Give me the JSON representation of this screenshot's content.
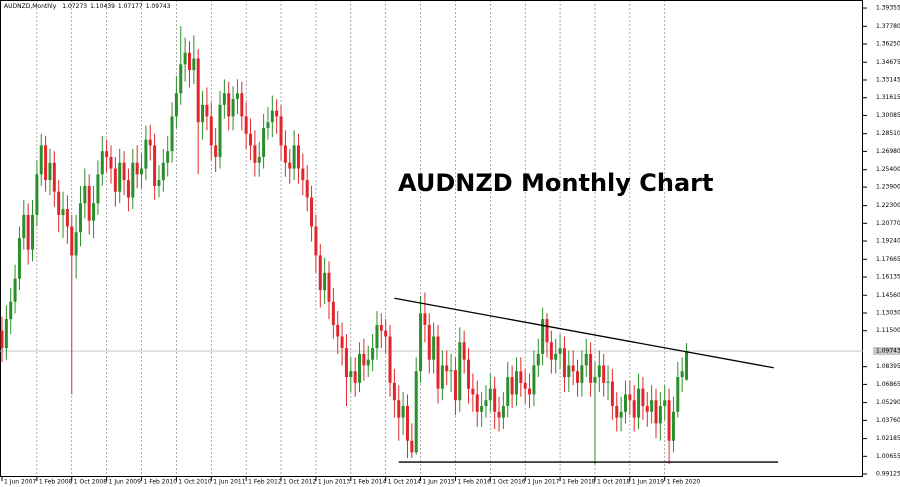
{
  "chart_data": {
    "type": "candlestick",
    "symbol": "AUDNZD,Monthly",
    "title": "AUDNZD Monthly Chart",
    "up_color": "#2a8f2a",
    "down_color": "#e0262c",
    "title_color": "#1f3f7a",
    "grid": true,
    "last_price": 1.09743,
    "ylim": [
      0.9887,
      1.4005
    ],
    "yticks": [
      1.39355,
      {
        "value": 1.3778,
        "label": "1.37780"
      },
      {
        "value": 1.3625,
        "label": "1.36250"
      },
      1.34675,
      1.33145,
      1.31615,
      1.30085,
      {
        "value": 1.2851,
        "label": "1.28510"
      },
      {
        "value": 1.2698,
        "label": "1.26980"
      },
      {
        "value": 1.254,
        "label": "1.25400"
      },
      {
        "value": 1.239,
        "label": "1.23900"
      },
      {
        "value": 1.223,
        "label": "1.22300"
      },
      {
        "value": 1.2077,
        "label": "1.20770"
      },
      {
        "value": 1.1924,
        "label": "1.19240"
      },
      1.17665,
      1.16135,
      {
        "value": 1.1456,
        "label": "1.14560"
      },
      {
        "value": 1.1303,
        "label": "1.13030"
      },
      {
        "value": 1.115,
        "label": "1.11500"
      },
      1.08395,
      1.06865,
      {
        "value": 1.0529,
        "label": "1.05290"
      },
      {
        "value": 1.0376,
        "label": "1.03760"
      },
      1.02185,
      1.00655,
      0.99125
    ],
    "categories": [
      "1 Jun 2007",
      null,
      null,
      null,
      null,
      null,
      null,
      null,
      "1 Feb 2008",
      null,
      null,
      null,
      null,
      null,
      null,
      null,
      "1 Oct 2008",
      null,
      null,
      null,
      null,
      null,
      null,
      null,
      "1 Jun 2009",
      null,
      null,
      null,
      null,
      null,
      null,
      null,
      "1 Feb 2010",
      null,
      null,
      null,
      null,
      null,
      null,
      null,
      "1 Oct 2010",
      null,
      null,
      null,
      null,
      null,
      null,
      null,
      "1 Jun 2011",
      null,
      null,
      null,
      null,
      null,
      null,
      null,
      "1 Feb 2012",
      null,
      null,
      null,
      null,
      null,
      null,
      null,
      "1 Oct 2012",
      null,
      null,
      null,
      null,
      null,
      null,
      null,
      "1 Jun 2013",
      null,
      null,
      null,
      null,
      null,
      null,
      null,
      "1 Feb 2014",
      null,
      null,
      null,
      null,
      null,
      null,
      null,
      "1 Oct 2014",
      null,
      null,
      null,
      null,
      null,
      null,
      null,
      "1 Jun 2015",
      null,
      null,
      null,
      null,
      null,
      null,
      null,
      "1 Feb 2016",
      null,
      null,
      null,
      null,
      null,
      null,
      null,
      "1 Oct 2016",
      null,
      null,
      null,
      null,
      null,
      null,
      null,
      "1 Jun 2017",
      null,
      null,
      null,
      null,
      null,
      null,
      null,
      "1 Feb 2018",
      null,
      null,
      null,
      null,
      null,
      null,
      null,
      "1 Oct 2018",
      null,
      null,
      null,
      null,
      null,
      null,
      null,
      "1 Jun 2019",
      null,
      null,
      null,
      null,
      null,
      null,
      null,
      "1 Feb 2020",
      null,
      null,
      null,
      null,
      null
    ],
    "ohlc": [
      [
        1.115,
        1.127,
        1.088,
        1.1
      ],
      [
        1.1,
        1.137,
        1.09,
        1.125
      ],
      [
        1.125,
        1.152,
        1.112,
        1.14
      ],
      [
        1.14,
        1.172,
        1.13,
        1.16
      ],
      [
        1.16,
        1.205,
        1.15,
        1.195
      ],
      [
        1.195,
        1.228,
        1.185,
        1.215
      ],
      [
        1.215,
        1.225,
        1.172,
        1.185
      ],
      [
        1.185,
        1.228,
        1.175,
        1.215
      ],
      [
        1.215,
        1.262,
        1.205,
        1.25
      ],
      [
        1.25,
        1.285,
        1.24,
        1.275
      ],
      [
        1.275,
        1.283,
        1.235,
        1.245
      ],
      [
        1.245,
        1.272,
        1.232,
        1.26
      ],
      [
        1.26,
        1.27,
        1.222,
        1.235
      ],
      [
        1.235,
        1.245,
        1.2,
        1.215
      ],
      [
        1.215,
        1.235,
        1.195,
        1.22
      ],
      [
        1.22,
        1.232,
        1.19,
        1.205
      ],
      [
        1.205,
        1.215,
        1.06,
        1.18
      ],
      [
        1.18,
        1.215,
        1.16,
        1.2
      ],
      [
        1.2,
        1.24,
        1.188,
        1.225
      ],
      [
        1.225,
        1.255,
        1.212,
        1.24
      ],
      [
        1.24,
        1.25,
        1.198,
        1.21
      ],
      [
        1.21,
        1.24,
        1.195,
        1.225
      ],
      [
        1.225,
        1.262,
        1.215,
        1.25
      ],
      [
        1.25,
        1.283,
        1.24,
        1.27
      ],
      [
        1.27,
        1.28,
        1.252,
        1.265
      ],
      [
        1.265,
        1.275,
        1.242,
        1.255
      ],
      [
        1.255,
        1.265,
        1.222,
        1.235
      ],
      [
        1.235,
        1.272,
        1.225,
        1.26
      ],
      [
        1.26,
        1.27,
        1.232,
        1.245
      ],
      [
        1.245,
        1.255,
        1.218,
        1.23
      ],
      [
        1.23,
        1.272,
        1.22,
        1.26
      ],
      [
        1.26,
        1.275,
        1.238,
        1.25
      ],
      [
        1.25,
        1.268,
        1.238,
        1.255
      ],
      [
        1.255,
        1.292,
        1.245,
        1.28
      ],
      [
        1.28,
        1.293,
        1.262,
        1.275
      ],
      [
        1.275,
        1.285,
        1.228,
        1.24
      ],
      [
        1.24,
        1.258,
        1.23,
        1.245
      ],
      [
        1.245,
        1.272,
        1.235,
        1.26
      ],
      [
        1.26,
        1.283,
        1.248,
        1.27
      ],
      [
        1.27,
        1.312,
        1.26,
        1.3
      ],
      [
        1.3,
        1.335,
        1.29,
        1.32
      ],
      [
        1.32,
        1.378,
        1.31,
        1.345
      ],
      [
        1.345,
        1.368,
        1.33,
        1.355
      ],
      [
        1.355,
        1.365,
        1.325,
        1.34
      ],
      [
        1.34,
        1.37,
        1.328,
        1.35
      ],
      [
        1.35,
        1.358,
        1.25,
        1.295
      ],
      [
        1.295,
        1.322,
        1.28,
        1.31
      ],
      [
        1.31,
        1.325,
        1.288,
        1.3
      ],
      [
        1.3,
        1.312,
        1.262,
        1.275
      ],
      [
        1.275,
        1.29,
        1.252,
        1.265
      ],
      [
        1.265,
        1.322,
        1.255,
        1.31
      ],
      [
        1.31,
        1.332,
        1.298,
        1.32
      ],
      [
        1.32,
        1.33,
        1.288,
        1.3
      ],
      [
        1.3,
        1.326,
        1.288,
        1.315
      ],
      [
        1.315,
        1.332,
        1.302,
        1.32
      ],
      [
        1.32,
        1.33,
        1.288,
        1.3
      ],
      [
        1.3,
        1.312,
        1.272,
        1.285
      ],
      [
        1.285,
        1.298,
        1.262,
        1.275
      ],
      [
        1.275,
        1.288,
        1.248,
        1.26
      ],
      [
        1.26,
        1.278,
        1.248,
        1.265
      ],
      [
        1.265,
        1.302,
        1.255,
        1.29
      ],
      [
        1.29,
        1.308,
        1.28,
        1.295
      ],
      [
        1.295,
        1.318,
        1.282,
        1.305
      ],
      [
        1.305,
        1.315,
        1.285,
        1.3
      ],
      [
        1.3,
        1.31,
        1.262,
        1.275
      ],
      [
        1.275,
        1.288,
        1.248,
        1.26
      ],
      [
        1.26,
        1.272,
        1.242,
        1.255
      ],
      [
        1.255,
        1.288,
        1.245,
        1.275
      ],
      [
        1.275,
        1.285,
        1.242,
        1.255
      ],
      [
        1.255,
        1.268,
        1.232,
        1.245
      ],
      [
        1.245,
        1.258,
        1.218,
        1.23
      ],
      [
        1.23,
        1.24,
        1.192,
        1.205
      ],
      [
        1.205,
        1.215,
        1.165,
        1.18
      ],
      [
        1.18,
        1.19,
        1.135,
        1.15
      ],
      [
        1.15,
        1.178,
        1.138,
        1.165
      ],
      [
        1.165,
        1.175,
        1.125,
        1.14
      ],
      [
        1.14,
        1.152,
        1.108,
        1.12
      ],
      [
        1.12,
        1.132,
        1.095,
        1.11
      ],
      [
        1.11,
        1.122,
        1.085,
        1.1
      ],
      [
        1.1,
        1.112,
        1.05,
        1.075
      ],
      [
        1.075,
        1.092,
        1.062,
        1.08
      ],
      [
        1.08,
        1.092,
        1.058,
        1.07
      ],
      [
        1.07,
        1.105,
        1.062,
        1.095
      ],
      [
        1.095,
        1.108,
        1.072,
        1.085
      ],
      [
        1.085,
        1.102,
        1.075,
        1.09
      ],
      [
        1.09,
        1.112,
        1.08,
        1.1
      ],
      [
        1.1,
        1.132,
        1.09,
        1.12
      ],
      [
        1.12,
        1.13,
        1.1,
        1.115
      ],
      [
        1.115,
        1.125,
        1.095,
        1.11
      ],
      [
        1.11,
        1.12,
        1.058,
        1.07
      ],
      [
        1.07,
        1.082,
        1.04,
        1.055
      ],
      [
        1.055,
        1.068,
        1.02,
        1.04
      ],
      [
        1.04,
        1.062,
        1.025,
        1.05
      ],
      [
        1.05,
        1.06,
        1.005,
        1.02
      ],
      [
        1.02,
        1.035,
        1.005,
        1.01
      ],
      [
        1.01,
        1.092,
        1.008,
        1.08
      ],
      [
        1.08,
        1.145,
        1.07,
        1.13
      ],
      [
        1.13,
        1.148,
        1.105,
        1.12
      ],
      [
        1.12,
        1.13,
        1.078,
        1.09
      ],
      [
        1.09,
        1.122,
        1.078,
        1.11
      ],
      [
        1.11,
        1.12,
        1.052,
        1.065
      ],
      [
        1.065,
        1.098,
        1.055,
        1.085
      ],
      [
        1.085,
        1.098,
        1.068,
        1.08
      ],
      [
        1.08,
        1.095,
        1.062,
        1.081
      ],
      [
        1.081,
        1.092,
        1.042,
        1.055
      ],
      [
        1.055,
        1.118,
        1.045,
        1.105
      ],
      [
        1.105,
        1.115,
        1.078,
        1.09
      ],
      [
        1.09,
        1.1,
        1.052,
        1.065
      ],
      [
        1.065,
        1.078,
        1.045,
        1.06
      ],
      [
        1.06,
        1.072,
        1.032,
        1.045
      ],
      [
        1.045,
        1.062,
        1.032,
        1.05
      ],
      [
        1.05,
        1.068,
        1.04,
        1.055
      ],
      [
        1.055,
        1.078,
        1.045,
        1.065
      ],
      [
        1.065,
        1.075,
        1.03,
        1.045
      ],
      [
        1.045,
        1.058,
        1.028,
        1.04
      ],
      [
        1.04,
        1.062,
        1.03,
        1.05
      ],
      [
        1.05,
        1.088,
        1.04,
        1.075
      ],
      [
        1.075,
        1.085,
        1.048,
        1.06
      ],
      [
        1.06,
        1.092,
        1.05,
        1.08
      ],
      [
        1.08,
        1.092,
        1.058,
        1.07
      ],
      [
        1.07,
        1.082,
        1.052,
        1.065
      ],
      [
        1.065,
        1.078,
        1.048,
        1.06
      ],
      [
        1.06,
        1.098,
        1.05,
        1.085
      ],
      [
        1.085,
        1.108,
        1.075,
        1.095
      ],
      [
        1.095,
        1.135,
        1.085,
        1.125
      ],
      [
        1.125,
        1.13,
        1.092,
        1.105
      ],
      [
        1.105,
        1.115,
        1.078,
        1.09
      ],
      [
        1.09,
        1.108,
        1.078,
        1.095
      ],
      [
        1.095,
        1.112,
        1.082,
        1.1
      ],
      [
        1.1,
        1.11,
        1.062,
        1.075
      ],
      [
        1.075,
        1.098,
        1.062,
        1.085
      ],
      [
        1.085,
        1.098,
        1.068,
        1.08
      ],
      [
        1.08,
        1.09,
        1.058,
        1.07
      ],
      [
        1.07,
        1.098,
        1.058,
        1.085
      ],
      [
        1.085,
        1.108,
        1.075,
        1.095
      ],
      [
        1.095,
        1.105,
        1.058,
        1.07
      ],
      [
        1.07,
        1.088,
        1.0,
        1.075
      ],
      [
        1.075,
        1.098,
        1.062,
        1.085
      ],
      [
        1.085,
        1.095,
        1.058,
        1.07
      ],
      [
        1.07,
        1.085,
        1.055,
        1.071
      ],
      [
        1.071,
        1.082,
        1.038,
        1.05
      ],
      [
        1.05,
        1.062,
        1.028,
        1.04
      ],
      [
        1.04,
        1.058,
        1.028,
        1.045
      ],
      [
        1.045,
        1.072,
        1.035,
        1.06
      ],
      [
        1.06,
        1.072,
        1.042,
        1.055
      ],
      [
        1.055,
        1.068,
        1.028,
        1.04
      ],
      [
        1.04,
        1.078,
        1.03,
        1.065
      ],
      [
        1.065,
        1.075,
        1.038,
        1.05
      ],
      [
        1.05,
        1.062,
        1.032,
        1.045
      ],
      [
        1.045,
        1.068,
        1.035,
        1.055
      ],
      [
        1.055,
        1.065,
        1.022,
        1.035
      ],
      [
        1.035,
        1.062,
        1.02,
        1.05
      ],
      [
        1.05,
        1.068,
        1.038,
        1.055
      ],
      [
        1.055,
        1.065,
        1.0,
        1.02
      ],
      [
        1.02,
        1.058,
        1.01,
        1.045
      ],
      [
        1.045,
        1.088,
        1.04,
        1.075
      ],
      [
        1.075,
        1.092,
        1.062,
        1.08
      ],
      [
        1.07273,
        1.10439,
        1.07177,
        1.09743
      ]
    ],
    "trendlines": [
      {
        "x": [
          90,
          177
        ],
        "y": [
          1.143,
          1.083
        ]
      },
      {
        "x": [
          91,
          178
        ],
        "y": [
          1.0016,
          1.0016
        ]
      }
    ]
  }
}
